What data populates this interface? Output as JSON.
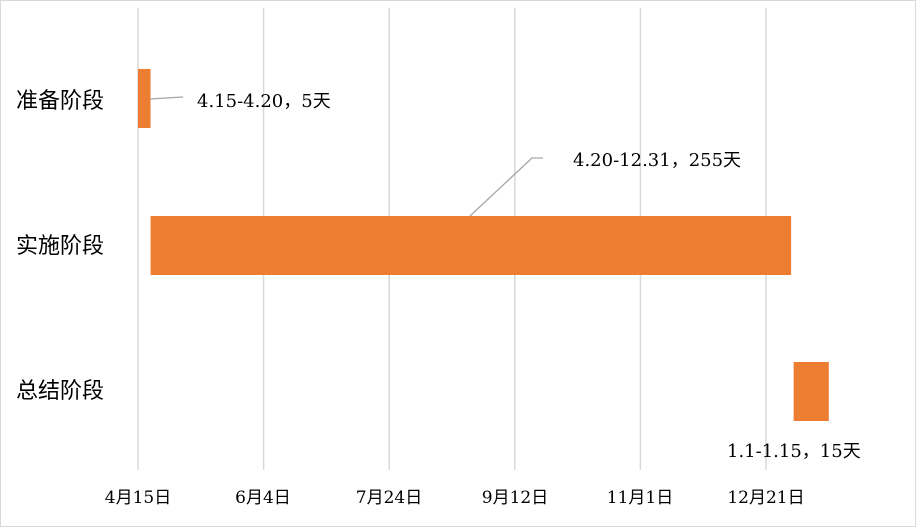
{
  "chart_data": {
    "type": "bar",
    "orientation": "horizontal-gantt",
    "title": "",
    "xlabel": "",
    "ylabel": "",
    "categories": [
      "准备阶段",
      "实施阶段",
      "总结阶段"
    ],
    "x_ticks": [
      "4月15日",
      "6月4日",
      "7月24日",
      "9月12日",
      "11月1日",
      "12月21日"
    ],
    "xlim": [
      "4月15日",
      "次年1月21日"
    ],
    "tick_interval_days": 50,
    "series": [
      {
        "color": "#ED7D31",
        "bars": [
          {
            "category": "准备阶段",
            "start": "4.15",
            "end": "4.20",
            "duration_days": 5,
            "label": "4.15-4.20，5天"
          },
          {
            "category": "实施阶段",
            "start": "4.20",
            "end": "12.31",
            "duration_days": 255,
            "label": "4.20-12.31，255天"
          },
          {
            "category": "总结阶段",
            "start": "1.1",
            "end": "1.15",
            "duration_days": 15,
            "label": "1.1-1.15，15天"
          }
        ]
      }
    ],
    "grid": "vertical",
    "legend": "none"
  },
  "colors": {
    "bar": "#ED7D31",
    "grid": "#d9d9d9",
    "leader": "#a6a6a6"
  }
}
